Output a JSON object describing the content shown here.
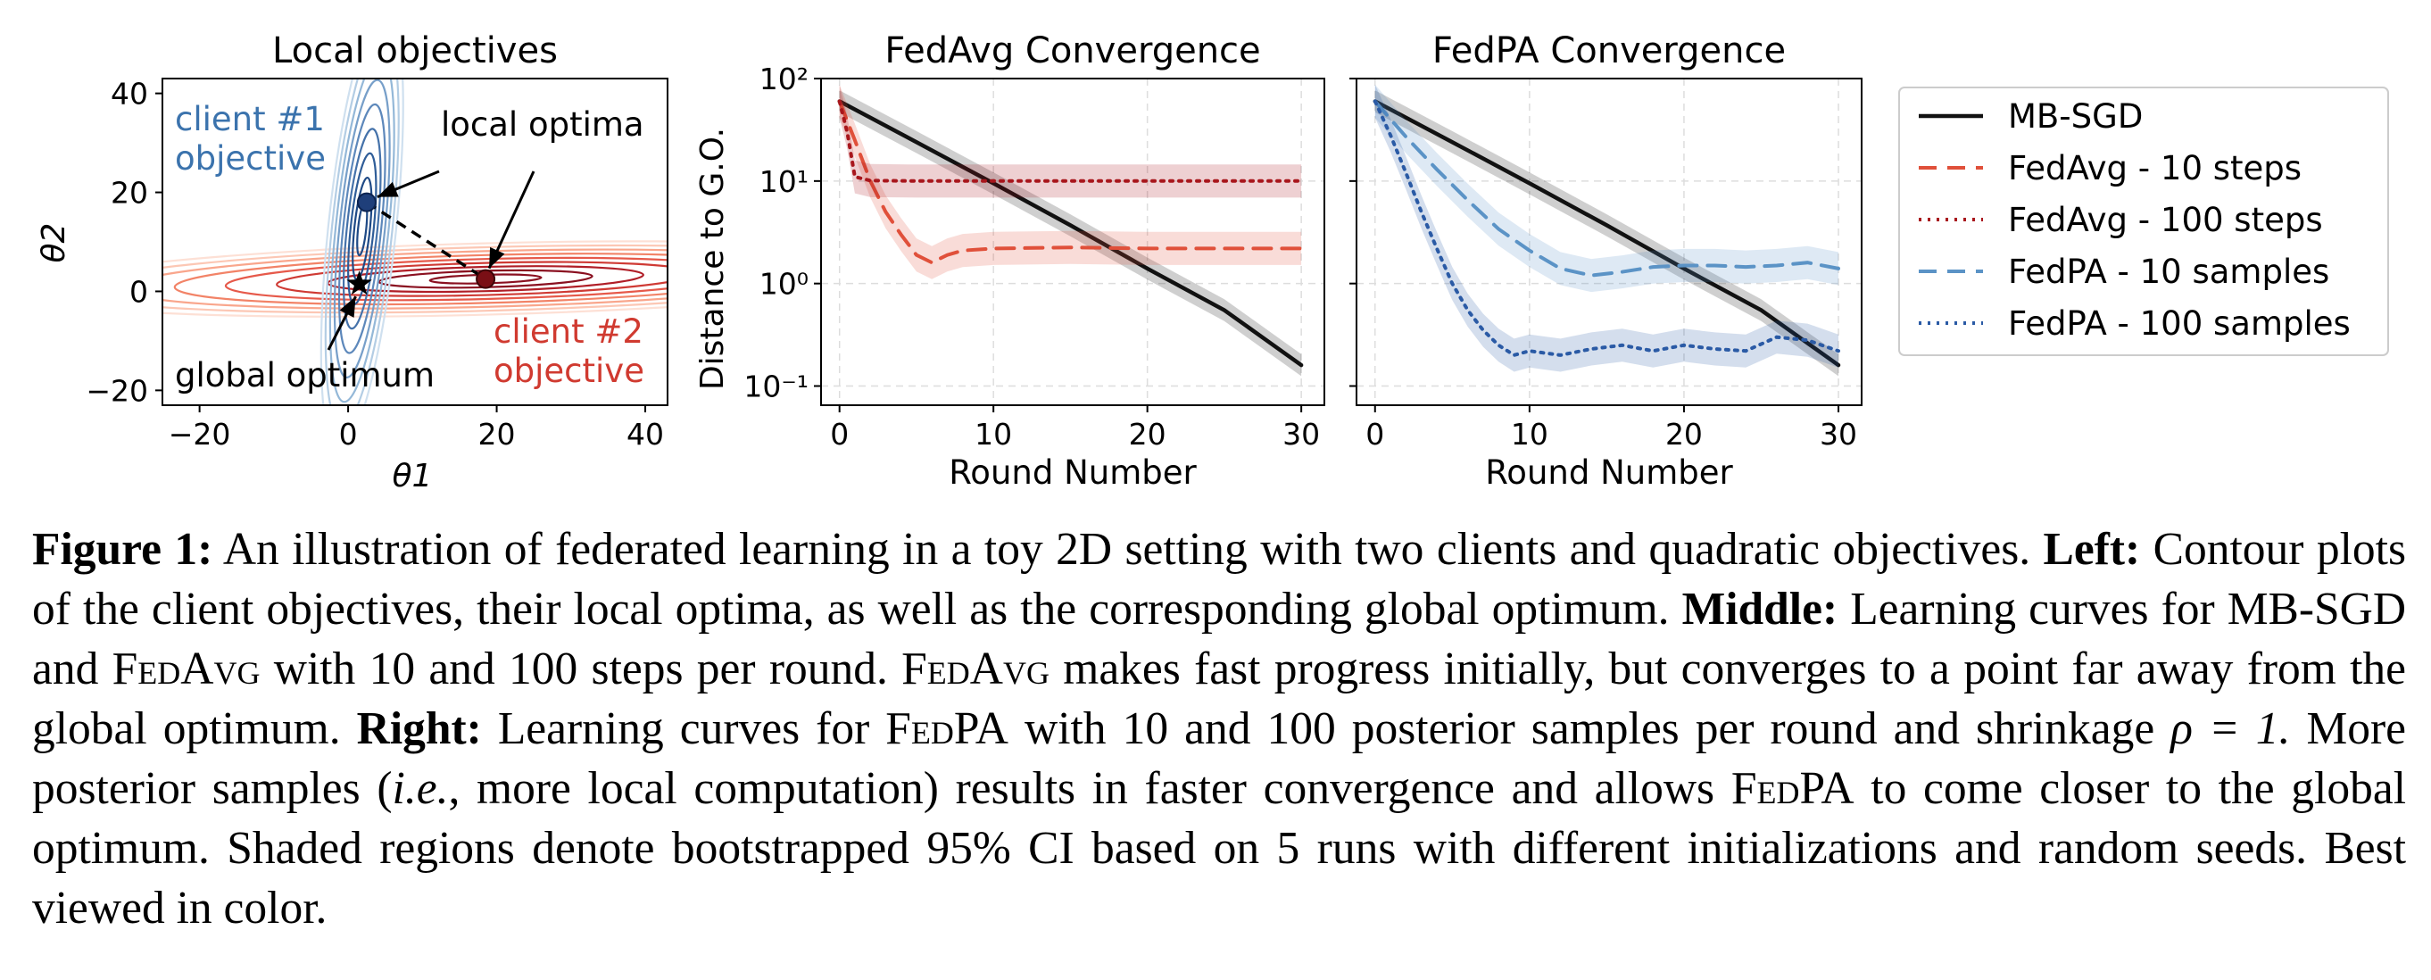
{
  "figure": {
    "panels": [
      {
        "id": "local-objectives",
        "title": "Local objectives",
        "xlabel": "θ1",
        "ylabel": "θ2",
        "xlim": [
          -25,
          43
        ],
        "ylim": [
          -23,
          43
        ],
        "xticks": [
          "−20",
          "0",
          "20",
          "40"
        ],
        "yticks": [
          "40",
          "20",
          "0",
          "−20"
        ],
        "annotations": {
          "client1": [
            "client #1",
            "objective"
          ],
          "client2": [
            "client #2",
            "objective"
          ],
          "local_optima": "local optima",
          "global_optimum": "global optimum"
        },
        "points": {
          "client1_optimum": [
            2.5,
            18
          ],
          "client2_optimum": [
            18.5,
            2.5
          ],
          "global_optimum": [
            1.5,
            1.5
          ]
        }
      },
      {
        "id": "fedavg-convergence",
        "title": "FedAvg Convergence",
        "xlabel": "Round Number",
        "ylabel": "Distance to G.O.",
        "xticks": [
          "0",
          "10",
          "20",
          "30"
        ],
        "yticks": [
          "10²",
          "10¹",
          "10⁰",
          "10⁻¹"
        ]
      },
      {
        "id": "fedpa-convergence",
        "title": "FedPA Convergence",
        "xlabel": "Round Number",
        "xticks": [
          "0",
          "10",
          "20",
          "30"
        ]
      }
    ],
    "legend": [
      {
        "label": "MB-SGD",
        "color": "#111111",
        "dash": "solid"
      },
      {
        "label": "FedAvg - 10 steps",
        "color": "#e0503a",
        "dash": "dashed"
      },
      {
        "label": "FedAvg - 100 steps",
        "color": "#a8161c",
        "dash": "dotted"
      },
      {
        "label": "FedPA - 10 samples",
        "color": "#5b93c6",
        "dash": "dashed"
      },
      {
        "label": "FedPA - 100 samples",
        "color": "#2a5aa5",
        "dash": "dotted"
      }
    ]
  },
  "chart_data": [
    {
      "type": "line",
      "title": "FedAvg Convergence",
      "xlabel": "Round Number",
      "ylabel": "Distance to G.O.",
      "yscale": "log",
      "xlim": [
        -1.2,
        31.5
      ],
      "ylim": [
        0.065,
        100
      ],
      "grid": true,
      "series": [
        {
          "name": "MB-SGD",
          "x": [
            0,
            5,
            10,
            15,
            20,
            25,
            30
          ],
          "values": [
            60,
            24,
            9.5,
            3.7,
            1.4,
            0.55,
            0.16
          ]
        },
        {
          "name": "FedAvg - 10 steps",
          "x": [
            0,
            1,
            2,
            3,
            4,
            5,
            6,
            7,
            8,
            10,
            15,
            20,
            25,
            30
          ],
          "values": [
            60,
            25,
            10,
            5,
            3,
            1.9,
            1.6,
            1.9,
            2.1,
            2.2,
            2.25,
            2.2,
            2.2,
            2.2
          ]
        },
        {
          "name": "FedAvg - 100 steps",
          "x": [
            0,
            0.5,
            1,
            2,
            5,
            10,
            20,
            30
          ],
          "values": [
            60,
            30,
            11,
            10.1,
            10,
            10,
            10,
            10
          ]
        }
      ]
    },
    {
      "type": "line",
      "title": "FedPA Convergence",
      "xlabel": "Round Number",
      "yscale": "log",
      "xlim": [
        -1.2,
        31.5
      ],
      "ylim": [
        0.065,
        100
      ],
      "grid": true,
      "series": [
        {
          "name": "MB-SGD",
          "x": [
            0,
            5,
            10,
            15,
            20,
            25,
            30
          ],
          "values": [
            60,
            24,
            9.5,
            3.7,
            1.4,
            0.55,
            0.16
          ]
        },
        {
          "name": "FedPA - 10 samples",
          "x": [
            0,
            2,
            4,
            6,
            8,
            10,
            12,
            14,
            16,
            18,
            20,
            22,
            24,
            26,
            28,
            30
          ],
          "values": [
            60,
            27,
            13,
            6.5,
            3.4,
            2.1,
            1.4,
            1.2,
            1.3,
            1.45,
            1.5,
            1.5,
            1.45,
            1.5,
            1.6,
            1.4
          ]
        },
        {
          "name": "FedPA - 100 samples",
          "x": [
            0,
            1,
            2,
            3,
            4,
            5,
            6,
            7,
            8,
            9,
            10,
            12,
            14,
            16,
            18,
            20,
            22,
            24,
            26,
            28,
            30
          ],
          "values": [
            60,
            28,
            12,
            5,
            2.2,
            1.0,
            0.55,
            0.35,
            0.25,
            0.2,
            0.22,
            0.2,
            0.23,
            0.25,
            0.22,
            0.25,
            0.23,
            0.22,
            0.3,
            0.28,
            0.22
          ]
        }
      ]
    }
  ],
  "caption": {
    "label": "Figure 1:",
    "s1": "An illustration of federated learning in a toy 2D setting with two clients and quadratic objectives.",
    "left_label": "Left:",
    "s2": "Contour plots of the client objectives, their local optima, as well as the corresponding global optimum.",
    "middle_label": "Middle:",
    "s3a": "Learning curves for MB-SGD and",
    "fedavg": "FedAvg",
    "s3b": "with 10 and 100 steps per round.",
    "s4": "makes fast progress initially, but converges to a point far away from the global optimum.",
    "right_label": "Right:",
    "s5a": "Learning curves for",
    "fedpa": "FedPA",
    "s5b": "with 10 and 100 posterior samples per round and shrinkage",
    "rho": "ρ = 1.",
    "s6a": "More posterior samples (",
    "ie": "i.e.",
    "s6b": ", more local computation) results in faster convergence and allows",
    "s6c": "to come closer to the global optimum. Shaded regions denote bootstrapped 95% CI based on 5 runs with different initializations and random seeds. Best viewed in color."
  }
}
